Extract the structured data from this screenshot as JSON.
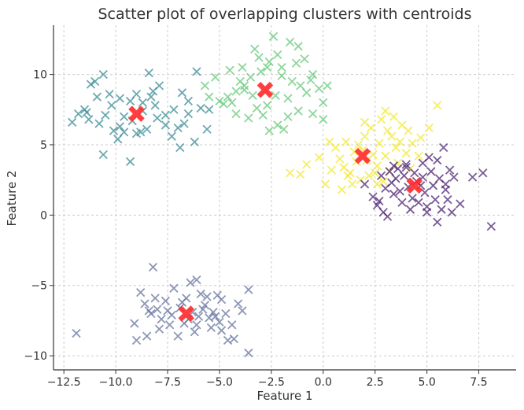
{
  "chart_data": {
    "type": "scatter",
    "title": "Scatter plot of overlapping clusters with centroids",
    "xlabel": "Feature 1",
    "ylabel": "Feature 2",
    "xlim": [
      -13,
      9.3
    ],
    "ylim": [
      -11,
      13.5
    ],
    "x_ticks": [
      -12.5,
      -10.0,
      -7.5,
      -5.0,
      -2.5,
      0.0,
      2.5,
      5.0,
      7.5
    ],
    "x_tick_labels": [
      "−12.5",
      "−10.0",
      "−7.5",
      "−5.0",
      "−2.5",
      "0.0",
      "2.5",
      "5.0",
      "7.5"
    ],
    "y_ticks": [
      -10,
      -5,
      0,
      5,
      10
    ],
    "y_tick_labels": [
      "−10",
      "−5",
      "0",
      "5",
      "10"
    ],
    "grid": true,
    "marker": "x",
    "centroid_color": "#ff2a2a",
    "series": [
      {
        "color": "#3b8b95",
        "points": [
          [
            -11.2,
            9.3
          ],
          [
            -10.6,
            10.0
          ],
          [
            -11.0,
            9.5
          ],
          [
            -10.3,
            8.6
          ],
          [
            -9.8,
            8.3
          ],
          [
            -9.3,
            8.1
          ],
          [
            -8.7,
            8.0
          ],
          [
            -8.3,
            8.4
          ],
          [
            -7.9,
            9.2
          ],
          [
            -8.4,
            10.1
          ],
          [
            -7.2,
            7.5
          ],
          [
            -6.8,
            8.7
          ],
          [
            -6.5,
            8.1
          ],
          [
            -6.5,
            7.2
          ],
          [
            -5.9,
            7.6
          ],
          [
            -6.7,
            6.5
          ],
          [
            -7.0,
            6.2
          ],
          [
            -7.6,
            6.4
          ],
          [
            -8.0,
            6.9
          ],
          [
            -8.5,
            6.1
          ],
          [
            -9.0,
            5.8
          ],
          [
            -9.6,
            5.9
          ],
          [
            -9.9,
            5.4
          ],
          [
            -10.1,
            6.0
          ],
          [
            -10.8,
            6.5
          ],
          [
            -11.3,
            6.8
          ],
          [
            -11.8,
            7.2
          ],
          [
            -12.1,
            6.6
          ],
          [
            -11.5,
            7.5
          ],
          [
            -10.5,
            7.1
          ],
          [
            -10.2,
            7.8
          ],
          [
            -9.6,
            7.0
          ],
          [
            -9.2,
            6.7
          ],
          [
            -8.7,
            7.4
          ],
          [
            -8.1,
            7.8
          ],
          [
            -7.3,
            5.6
          ],
          [
            -6.9,
            4.8
          ],
          [
            -6.2,
            5.2
          ],
          [
            -5.6,
            6.1
          ],
          [
            -5.5,
            7.5
          ],
          [
            -6.1,
            10.2
          ],
          [
            -10.6,
            4.3
          ],
          [
            -9.3,
            3.8
          ],
          [
            -9.8,
            6.3
          ],
          [
            -10.9,
            8.4
          ],
          [
            -9.0,
            8.6
          ],
          [
            -8.2,
            8.8
          ],
          [
            -7.6,
            7.1
          ],
          [
            -11.4,
            7.3
          ],
          [
            -8.8,
            5.9
          ]
        ]
      },
      {
        "color": "#66c878",
        "points": [
          [
            -5.0,
            8.1
          ],
          [
            -4.6,
            8.4
          ],
          [
            -4.2,
            8.8
          ],
          [
            -3.8,
            9.2
          ],
          [
            -3.4,
            8.5
          ],
          [
            -3.5,
            9.8
          ],
          [
            -3.0,
            10.2
          ],
          [
            -2.6,
            10.9
          ],
          [
            -2.2,
            11.4
          ],
          [
            -1.6,
            12.3
          ],
          [
            -2.4,
            12.7
          ],
          [
            -3.3,
            11.8
          ],
          [
            -2.0,
            10.5
          ],
          [
            -1.5,
            9.5
          ],
          [
            -1.1,
            9.2
          ],
          [
            -0.8,
            8.7
          ],
          [
            -0.5,
            10.0
          ],
          [
            -0.2,
            9.0
          ],
          [
            0.2,
            9.2
          ],
          [
            0.0,
            8.0
          ],
          [
            -0.5,
            7.2
          ],
          [
            -1.2,
            7.4
          ],
          [
            -1.7,
            7.0
          ],
          [
            -2.2,
            6.4
          ],
          [
            -2.6,
            6.0
          ],
          [
            -2.9,
            7.1
          ],
          [
            -3.6,
            6.9
          ],
          [
            -4.2,
            7.2
          ],
          [
            -4.8,
            7.9
          ],
          [
            -5.5,
            8.4
          ],
          [
            -5.2,
            9.8
          ],
          [
            -4.5,
            10.3
          ],
          [
            -3.9,
            10.5
          ],
          [
            -3.1,
            11.2
          ],
          [
            -2.0,
            9.9
          ],
          [
            -1.7,
            8.3
          ],
          [
            -1.3,
            10.8
          ],
          [
            -0.9,
            11.1
          ],
          [
            -3.8,
            8.9
          ],
          [
            -4.0,
            9.5
          ],
          [
            -2.3,
            8.5
          ],
          [
            -2.7,
            7.8
          ],
          [
            -3.2,
            7.6
          ],
          [
            0.0,
            6.8
          ],
          [
            -5.7,
            9.2
          ],
          [
            -4.4,
            8.0
          ],
          [
            -1.9,
            6.1
          ],
          [
            -0.6,
            9.6
          ],
          [
            -1.2,
            12.0
          ],
          [
            -2.7,
            10.5
          ]
        ]
      },
      {
        "color": "#f2e832",
        "points": [
          [
            0.6,
            4.8
          ],
          [
            0.8,
            4.0
          ],
          [
            1.0,
            3.4
          ],
          [
            1.2,
            2.8
          ],
          [
            1.4,
            2.2
          ],
          [
            0.9,
            1.8
          ],
          [
            1.6,
            3.8
          ],
          [
            1.9,
            4.6
          ],
          [
            2.0,
            5.6
          ],
          [
            2.3,
            6.2
          ],
          [
            2.8,
            6.8
          ],
          [
            3.0,
            7.4
          ],
          [
            3.4,
            7.0
          ],
          [
            3.8,
            6.4
          ],
          [
            3.3,
            5.6
          ],
          [
            2.7,
            5.1
          ],
          [
            2.4,
            4.3
          ],
          [
            2.6,
            3.5
          ],
          [
            2.2,
            2.8
          ],
          [
            1.8,
            2.5
          ],
          [
            2.9,
            2.4
          ],
          [
            3.2,
            3.1
          ],
          [
            3.6,
            3.7
          ],
          [
            4.0,
            4.4
          ],
          [
            4.3,
            5.1
          ],
          [
            4.7,
            5.5
          ],
          [
            5.1,
            6.2
          ],
          [
            5.5,
            7.8
          ],
          [
            0.3,
            5.2
          ],
          [
            -0.2,
            4.1
          ],
          [
            -0.8,
            3.6
          ],
          [
            -1.1,
            2.9
          ],
          [
            -1.6,
            3.0
          ],
          [
            0.1,
            2.2
          ],
          [
            1.1,
            5.2
          ],
          [
            1.5,
            4.5
          ],
          [
            2.1,
            3.9
          ],
          [
            2.5,
            3.0
          ],
          [
            3.0,
            4.2
          ],
          [
            3.5,
            4.8
          ],
          [
            4.6,
            4.2
          ],
          [
            4.2,
            3.3
          ],
          [
            2.6,
            2.2
          ],
          [
            1.3,
            3.0
          ],
          [
            0.4,
            3.2
          ],
          [
            2.0,
            6.6
          ],
          [
            3.1,
            6.0
          ],
          [
            3.7,
            5.2
          ],
          [
            4.1,
            6.0
          ],
          [
            1.7,
            5.0
          ]
        ]
      },
      {
        "color": "#4b2373",
        "points": [
          [
            2.8,
            2.8
          ],
          [
            3.2,
            3.1
          ],
          [
            3.6,
            3.3
          ],
          [
            4.0,
            3.4
          ],
          [
            4.4,
            3.0
          ],
          [
            4.8,
            2.7
          ],
          [
            5.2,
            3.1
          ],
          [
            5.6,
            2.6
          ],
          [
            6.1,
            3.2
          ],
          [
            6.3,
            2.7
          ],
          [
            5.9,
            1.8
          ],
          [
            5.4,
            1.1
          ],
          [
            5.0,
            0.6
          ],
          [
            4.6,
            0.9
          ],
          [
            4.2,
            0.4
          ],
          [
            3.8,
            0.9
          ],
          [
            3.4,
            1.5
          ],
          [
            3.0,
            1.9
          ],
          [
            2.6,
            0.7
          ],
          [
            2.9,
            0.2
          ],
          [
            2.4,
            1.3
          ],
          [
            2.0,
            2.2
          ],
          [
            3.3,
            2.3
          ],
          [
            3.7,
            1.7
          ],
          [
            4.1,
            2.0
          ],
          [
            4.9,
            1.6
          ],
          [
            5.3,
            2.1
          ],
          [
            5.7,
            0.4
          ],
          [
            6.2,
            0.2
          ],
          [
            6.6,
            0.8
          ],
          [
            7.2,
            2.7
          ],
          [
            7.7,
            3.0
          ],
          [
            8.1,
            -0.8
          ],
          [
            5.8,
            4.8
          ],
          [
            5.5,
            3.9
          ],
          [
            5.1,
            4.1
          ],
          [
            4.8,
            3.7
          ],
          [
            3.5,
            2.6
          ],
          [
            3.9,
            2.8
          ],
          [
            4.5,
            2.4
          ],
          [
            5.0,
            0.2
          ],
          [
            5.5,
            -0.5
          ],
          [
            4.3,
            1.2
          ],
          [
            3.1,
            -0.1
          ],
          [
            2.7,
            1.0
          ],
          [
            6.0,
            1.1
          ],
          [
            4.0,
            3.6
          ],
          [
            3.4,
            3.5
          ],
          [
            5.9,
            2.2
          ],
          [
            4.7,
            2.1
          ]
        ]
      },
      {
        "color": "#66739e",
        "points": [
          [
            -11.9,
            -8.4
          ],
          [
            -9.1,
            -7.7
          ],
          [
            -9.0,
            -8.9
          ],
          [
            -8.5,
            -8.6
          ],
          [
            -8.8,
            -5.5
          ],
          [
            -8.2,
            -3.7
          ],
          [
            -8.0,
            -6.7
          ],
          [
            -7.6,
            -6.1
          ],
          [
            -7.3,
            -7.1
          ],
          [
            -7.0,
            -8.6
          ],
          [
            -6.8,
            -6.2
          ],
          [
            -6.6,
            -5.9
          ],
          [
            -6.4,
            -4.8
          ],
          [
            -6.1,
            -4.6
          ],
          [
            -6.1,
            -7.8
          ],
          [
            -5.8,
            -6.7
          ],
          [
            -5.6,
            -5.8
          ],
          [
            -5.3,
            -6.9
          ],
          [
            -5.0,
            -7.6
          ],
          [
            -4.9,
            -8.2
          ],
          [
            -4.6,
            -8.9
          ],
          [
            -4.3,
            -8.8
          ],
          [
            -4.1,
            -6.3
          ],
          [
            -3.9,
            -6.8
          ],
          [
            -3.6,
            -5.3
          ],
          [
            -3.6,
            -9.8
          ],
          [
            -5.9,
            -5.6
          ],
          [
            -6.9,
            -6.6
          ],
          [
            -7.5,
            -6.8
          ],
          [
            -7.8,
            -7.4
          ],
          [
            -8.3,
            -7.0
          ],
          [
            -8.6,
            -6.3
          ],
          [
            -7.2,
            -5.2
          ],
          [
            -6.3,
            -6.9
          ],
          [
            -5.5,
            -7.3
          ],
          [
            -5.2,
            -7.2
          ],
          [
            -4.9,
            -6.0
          ],
          [
            -6.7,
            -7.7
          ],
          [
            -7.9,
            -8.1
          ],
          [
            -8.1,
            -5.9
          ],
          [
            -6.0,
            -7.2
          ],
          [
            -5.4,
            -8.0
          ],
          [
            -4.4,
            -7.8
          ],
          [
            -7.4,
            -7.8
          ],
          [
            -6.5,
            -7.4
          ],
          [
            -5.1,
            -5.7
          ],
          [
            -8.4,
            -6.8
          ],
          [
            -5.7,
            -6.4
          ],
          [
            -6.2,
            -8.3
          ],
          [
            -4.7,
            -7.0
          ]
        ]
      }
    ],
    "centroids": [
      [
        -9.0,
        7.2
      ],
      [
        -2.8,
        8.9
      ],
      [
        1.9,
        4.2
      ],
      [
        4.4,
        2.1
      ],
      [
        -6.6,
        -7.0
      ]
    ]
  }
}
